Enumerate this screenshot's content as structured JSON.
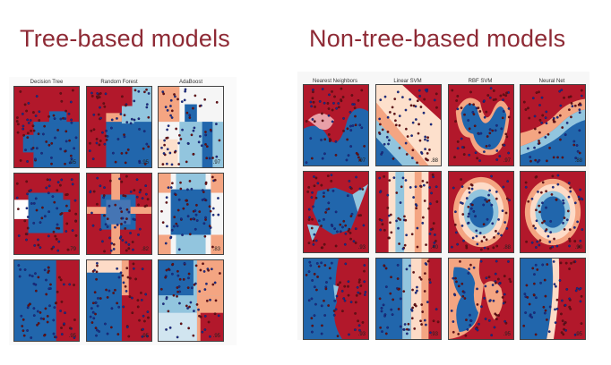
{
  "left_title": "Tree-based models",
  "right_title": "Non-tree-based models",
  "left_columns": [
    "Decision Tree",
    "Random Forest",
    "AdaBoost"
  ],
  "right_columns": [
    "Nearest Neighbors",
    "Linear SVM",
    "RBF SVM",
    "Neural Net"
  ],
  "colors": {
    "title": "#8e2a35",
    "class_red": "#b2182b",
    "class_blue": "#2166ac",
    "light_red": "#f4a582",
    "light_blue": "#92c5de"
  },
  "left_scores": [
    [
      ".95",
      ".95",
      ".97"
    ],
    [
      ".79",
      ".82",
      ".83"
    ],
    [
      ".95",
      ".95",
      ".95"
    ]
  ],
  "right_scores": [
    [
      ".97",
      ".88",
      ".97",
      ".88"
    ],
    [
      ".93",
      ".40",
      ".88",
      ".90"
    ],
    [
      ".93",
      ".93",
      ".95",
      ".95"
    ]
  ]
}
